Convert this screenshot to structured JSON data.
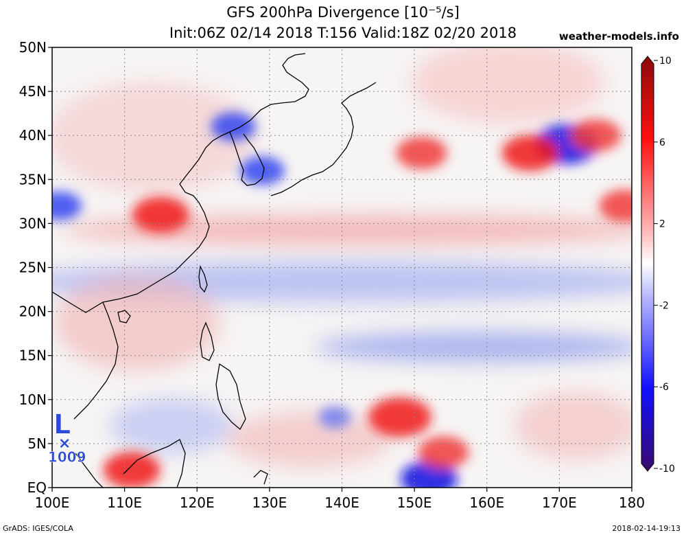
{
  "header": {
    "title": "GFS 200hPa Divergence [10⁻⁵/s]",
    "subtitle": "Init:06Z 02/14 2018 T:156 Valid:18Z 02/20 2018",
    "source": "weather-models.info"
  },
  "map": {
    "lon_range": [
      100,
      180
    ],
    "lat_range": [
      0,
      50
    ],
    "lat_labels": [
      "EQ",
      "5N",
      "10N",
      "15N",
      "20N",
      "25N",
      "30N",
      "35N",
      "40N",
      "45N",
      "50N"
    ],
    "lon_labels": [
      "100E",
      "110E",
      "120E",
      "130E",
      "140E",
      "150E",
      "160E",
      "170E",
      "180"
    ],
    "grid": true,
    "low_marker": {
      "letter": "L",
      "symbol": "×",
      "pressure": "1009",
      "lon": 101.5,
      "lat": 5.5
    },
    "features": [
      {
        "type": "convergence",
        "lon": 171,
        "lat": 39,
        "strength": 8
      },
      {
        "type": "convergence",
        "lon": 125,
        "lat": 41,
        "strength": 5
      },
      {
        "type": "convergence",
        "lon": 129,
        "lat": 36,
        "strength": 5
      },
      {
        "type": "convergence",
        "lon": 101,
        "lat": 32,
        "strength": 5
      },
      {
        "type": "convergence",
        "lon": 152,
        "lat": 1,
        "strength": 7
      },
      {
        "type": "convergence",
        "lon": 139,
        "lat": 8,
        "strength": 3
      },
      {
        "type": "divergence",
        "lon": 115,
        "lat": 31,
        "strength": 7
      },
      {
        "type": "divergence",
        "lon": 166,
        "lat": 38,
        "strength": 7
      },
      {
        "type": "divergence",
        "lon": 175,
        "lat": 40,
        "strength": 6
      },
      {
        "type": "divergence",
        "lon": 151,
        "lat": 38,
        "strength": 6
      },
      {
        "type": "divergence",
        "lon": 148,
        "lat": 8,
        "strength": 8
      },
      {
        "type": "divergence",
        "lon": 111,
        "lat": 2,
        "strength": 7
      },
      {
        "type": "divergence",
        "lon": 154,
        "lat": 4,
        "strength": 6
      },
      {
        "type": "divergence",
        "lon": 179,
        "lat": 32,
        "strength": 6
      }
    ]
  },
  "colorbar": {
    "range": [
      -10,
      10
    ],
    "tick_labels": [
      "10",
      "6",
      "2",
      "-2",
      "-6",
      "-10"
    ],
    "colors": {
      "max": "#8b0000",
      "high": "#ff0000",
      "low": "#0000ff",
      "min": "#3b0a6e",
      "zero": "#ffffff"
    }
  },
  "footer": {
    "left": "GrADS: IGES/COLA",
    "right": "2018-02-14-19:13"
  }
}
